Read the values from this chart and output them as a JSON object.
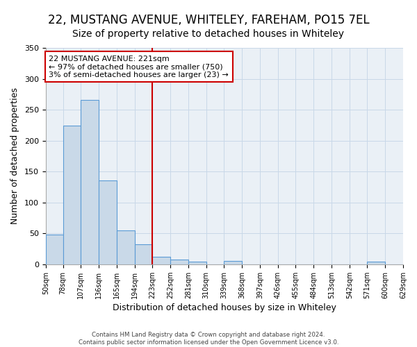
{
  "title": "22, MUSTANG AVENUE, WHITELEY, FAREHAM, PO15 7EL",
  "subtitle": "Size of property relative to detached houses in Whiteley",
  "xlabel": "Distribution of detached houses by size in Whiteley",
  "ylabel": "Number of detached properties",
  "bar_edges": [
    50,
    78,
    107,
    136,
    165,
    194,
    223,
    252,
    281,
    310,
    339,
    368,
    397,
    426,
    455,
    484,
    513,
    542,
    571,
    600,
    629
  ],
  "bar_heights": [
    48,
    224,
    266,
    136,
    55,
    32,
    12,
    8,
    4,
    0,
    5,
    0,
    0,
    0,
    0,
    0,
    0,
    0,
    4,
    0
  ],
  "bar_color": "#c9d9e8",
  "bar_edgecolor": "#5b9bd5",
  "vline_x": 223,
  "vline_color": "#cc0000",
  "annotation_title": "22 MUSTANG AVENUE: 221sqm",
  "annotation_line1": "← 97% of detached houses are smaller (750)",
  "annotation_line2": "3% of semi-detached houses are larger (23) →",
  "annotation_box_color": "#cc0000",
  "ylim": [
    0,
    350
  ],
  "yticks": [
    0,
    50,
    100,
    150,
    200,
    250,
    300,
    350
  ],
  "footer1": "Contains HM Land Registry data © Crown copyright and database right 2024.",
  "footer2": "Contains public sector information licensed under the Open Government Licence v3.0.",
  "background_color": "#eaf0f6",
  "plot_background": "#ffffff",
  "title_fontsize": 12,
  "subtitle_fontsize": 10
}
